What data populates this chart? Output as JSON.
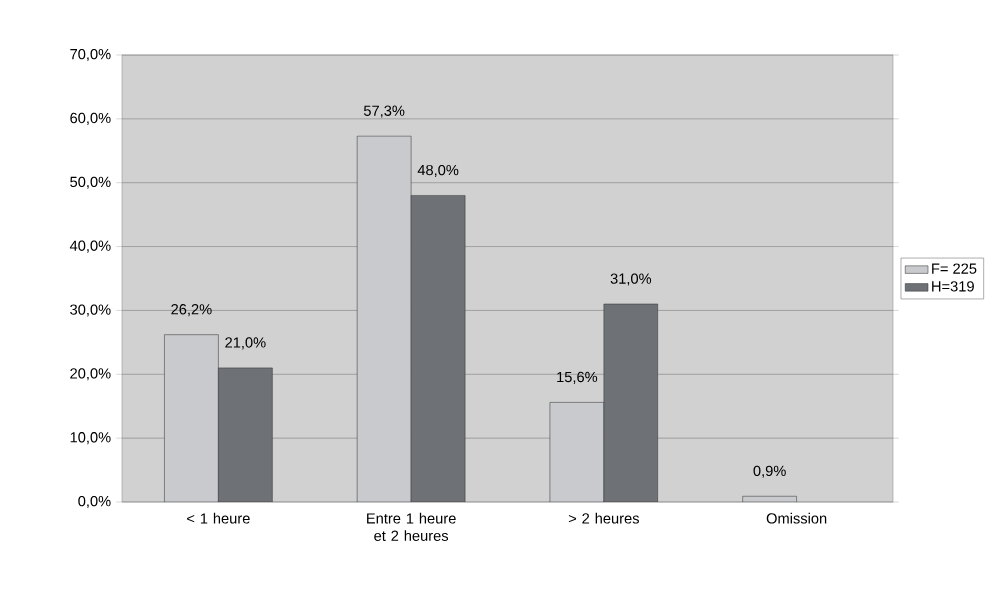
{
  "chart_data": {
    "type": "bar",
    "categories": [
      "< 1 heure",
      "Entre 1 heure et 2 heures",
      "> 2 heures",
      "Omission"
    ],
    "series": [
      {
        "name": "F= 225",
        "color": "#c9cace",
        "values": [
          26.2,
          57.3,
          15.6,
          0.9
        ],
        "value_labels": [
          "26,2%",
          "57,3%",
          "15,6%",
          "0,9%"
        ]
      },
      {
        "name": "H=319",
        "color": "#6e7175",
        "values": [
          21.0,
          48.0,
          31.0,
          null
        ],
        "value_labels": [
          "21,0%",
          "48,0%",
          "31,0%",
          null
        ]
      }
    ],
    "ylim": [
      0,
      70
    ],
    "yticks": [
      {
        "value": 0,
        "label": "0,0%"
      },
      {
        "value": 10,
        "label": "10,0%"
      },
      {
        "value": 20,
        "label": "20,0%"
      },
      {
        "value": 30,
        "label": "30,0%"
      },
      {
        "value": 40,
        "label": "40,0%"
      },
      {
        "value": 50,
        "label": "50,0%"
      },
      {
        "value": 60,
        "label": "60,0%"
      },
      {
        "value": 70,
        "label": "70,0%"
      }
    ],
    "grid": "y",
    "legend": "right"
  }
}
